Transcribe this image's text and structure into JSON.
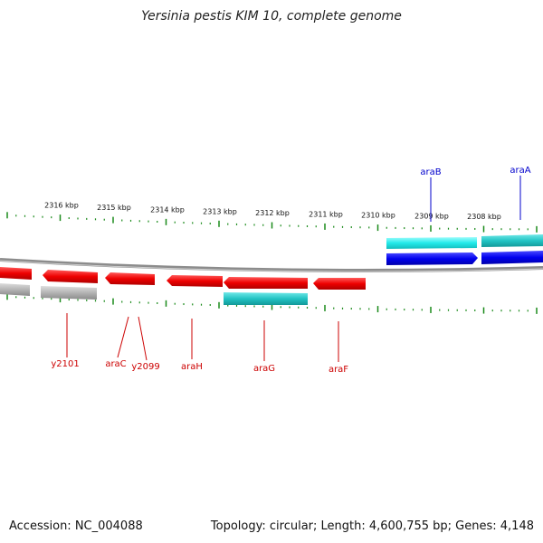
{
  "title": "Yersinia pestis KIM 10, complete genome",
  "footer": {
    "accession": "Accession: NC_004088",
    "summary": "Topology: circular; Length: 4,600,755 bp; Genes: 4,148"
  },
  "scale_labels": [
    "2316 kbp",
    "2315 kbp",
    "2314 kbp",
    "2313 kbp",
    "2312 kbp",
    "2311 kbp",
    "2310 kbp",
    "2309 kbp",
    "2308 kbp"
  ],
  "genes_top": [
    {
      "name": "araB",
      "color": "#0000cc"
    },
    {
      "name": "araA",
      "color": "#0000cc"
    }
  ],
  "genes_bottom": [
    {
      "name": "y2101",
      "color": "#cc0000"
    },
    {
      "name": "araC",
      "color": "#cc0000"
    },
    {
      "name": "y2099",
      "color": "#cc0000"
    },
    {
      "name": "araH",
      "color": "#cc0000"
    },
    {
      "name": "araG",
      "color": "#cc0000"
    },
    {
      "name": "araF",
      "color": "#cc0000"
    }
  ],
  "colors": {
    "forward_cds": "#0000ee",
    "reverse_cds": "#ee0000",
    "feature_teal": "#22c4c4",
    "feature_grey": "#aaaaaa",
    "backbone": "#888888",
    "ticks": "#1a8a1a"
  }
}
